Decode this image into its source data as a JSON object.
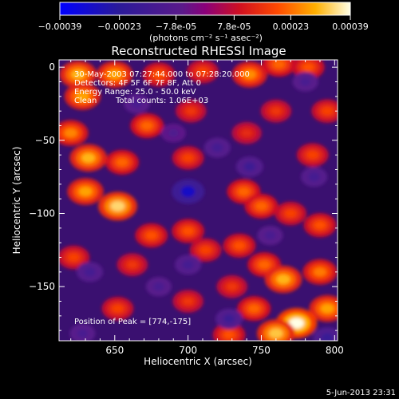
{
  "colorbar": {
    "tick_labels": [
      "-0.00039",
      "-0.00023",
      "-7.8e-05",
      "7.8e-05",
      "0.00023",
      "0.00039"
    ],
    "unit_label": "(photons cm⁻² s⁻¹ asec⁻²)",
    "range": [
      -0.00039,
      0.00039
    ]
  },
  "timestamp": "5-Jun-2013 23:31",
  "chart_data": {
    "type": "heatmap",
    "title": "Reconstructed RHESSI Image",
    "xlabel": "Heliocentric X (arcsec)",
    "ylabel": "Heliocentric Y (arcsec)",
    "xlim": [
      612,
      802
    ],
    "ylim": [
      -187,
      5
    ],
    "x_ticks": [
      650,
      700,
      750,
      800
    ],
    "y_ticks": [
      0,
      -50,
      -100,
      -150
    ],
    "annotations": {
      "time_range": "30-May-2003 07:27:44.000 to 07:28:20.000",
      "detectors": "Detectors: 4F 5F 6F 7F 8F, Att 0",
      "energy": "Energy Range: 25.0 - 50.0 keV",
      "method": "Clean",
      "counts": "Total counts: 1.06E+03",
      "peak": "Position of Peak = [774,-175]"
    },
    "hotspots": [
      {
        "x": 625,
        "y": -5,
        "v": 0.0003
      },
      {
        "x": 650,
        "y": -5,
        "v": 0.00028
      },
      {
        "x": 680,
        "y": -5,
        "v": 0.0002
      },
      {
        "x": 710,
        "y": -3,
        "v": 0.00018
      },
      {
        "x": 742,
        "y": -5,
        "v": 0.00026
      },
      {
        "x": 762,
        "y": 2,
        "v": 0.00022
      },
      {
        "x": 782,
        "y": 0,
        "v": 0.0002
      },
      {
        "x": 628,
        "y": -20,
        "v": 0.00028
      },
      {
        "x": 672,
        "y": -40,
        "v": 0.00022
      },
      {
        "x": 702,
        "y": -30,
        "v": 0.00016
      },
      {
        "x": 760,
        "y": -30,
        "v": 0.00016
      },
      {
        "x": 795,
        "y": -30,
        "v": 0.00018
      },
      {
        "x": 620,
        "y": -45,
        "v": 0.00025
      },
      {
        "x": 632,
        "y": -62,
        "v": 0.0003
      },
      {
        "x": 655,
        "y": -65,
        "v": 0.00022
      },
      {
        "x": 700,
        "y": -62,
        "v": 0.00018
      },
      {
        "x": 740,
        "y": -45,
        "v": 0.00014
      },
      {
        "x": 785,
        "y": -60,
        "v": 0.00018
      },
      {
        "x": 630,
        "y": -85,
        "v": 0.00028
      },
      {
        "x": 652,
        "y": -95,
        "v": 0.00034
      },
      {
        "x": 675,
        "y": -115,
        "v": 0.0002
      },
      {
        "x": 738,
        "y": -85,
        "v": 0.00022
      },
      {
        "x": 750,
        "y": -95,
        "v": 0.00022
      },
      {
        "x": 770,
        "y": -100,
        "v": 0.00018
      },
      {
        "x": 790,
        "y": -108,
        "v": 0.0002
      },
      {
        "x": 700,
        "y": -112,
        "v": 0.0002
      },
      {
        "x": 712,
        "y": -125,
        "v": 0.00018
      },
      {
        "x": 735,
        "y": -122,
        "v": 0.0002
      },
      {
        "x": 622,
        "y": -130,
        "v": 0.00018
      },
      {
        "x": 662,
        "y": -135,
        "v": 0.00016
      },
      {
        "x": 752,
        "y": -135,
        "v": 0.00022
      },
      {
        "x": 765,
        "y": -145,
        "v": 0.0003
      },
      {
        "x": 790,
        "y": -140,
        "v": 0.00024
      },
      {
        "x": 730,
        "y": -150,
        "v": 0.00016
      },
      {
        "x": 700,
        "y": -160,
        "v": 0.00016
      },
      {
        "x": 652,
        "y": -165,
        "v": 0.00018
      },
      {
        "x": 745,
        "y": -165,
        "v": 0.00022
      },
      {
        "x": 795,
        "y": -165,
        "v": 0.00028
      },
      {
        "x": 774,
        "y": -175,
        "v": 0.00039
      },
      {
        "x": 760,
        "y": -182,
        "v": 0.00032
      },
      {
        "x": 728,
        "y": -183,
        "v": 0.0002
      },
      {
        "x": 700,
        "y": -85,
        "v": -0.0003
      },
      {
        "x": 720,
        "y": -55,
        "v": -0.00014
      },
      {
        "x": 742,
        "y": -68,
        "v": -0.00016
      },
      {
        "x": 665,
        "y": -25,
        "v": -0.00012
      },
      {
        "x": 690,
        "y": -45,
        "v": -0.0001
      },
      {
        "x": 633,
        "y": -140,
        "v": -0.00014
      },
      {
        "x": 700,
        "y": -135,
        "v": -0.00014
      },
      {
        "x": 728,
        "y": -172,
        "v": -0.00016
      },
      {
        "x": 795,
        "y": -185,
        "v": -0.00018
      },
      {
        "x": 780,
        "y": -10,
        "v": -0.00012
      },
      {
        "x": 786,
        "y": -75,
        "v": -0.00014
      },
      {
        "x": 756,
        "y": -115,
        "v": -0.00012
      },
      {
        "x": 680,
        "y": -150,
        "v": -0.00012
      },
      {
        "x": 628,
        "y": -182,
        "v": -0.00012
      }
    ]
  }
}
